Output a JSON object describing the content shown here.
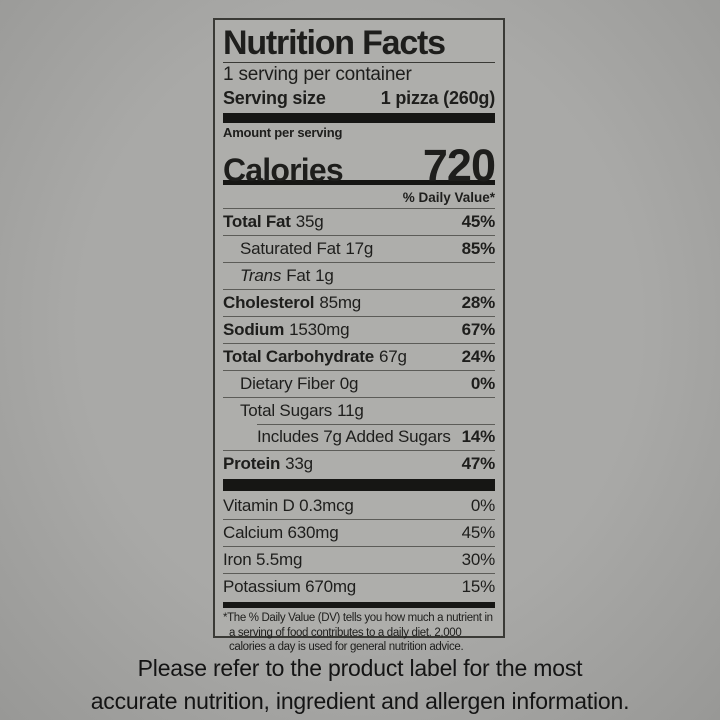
{
  "label": {
    "title": "Nutrition Facts",
    "servings_per_container": "1 serving per container",
    "serving_size_label": "Serving size",
    "serving_size_value": "1 pizza (260g)",
    "amount_per_serving": "Amount per serving",
    "calories_label": "Calories",
    "calories_value": "720",
    "daily_value_header": "% Daily Value*",
    "rows": [
      {
        "name": "Total Fat",
        "amount": "35g",
        "dv": "45%"
      },
      {
        "name": "Saturated Fat",
        "amount": "17g",
        "dv": "85%"
      },
      {
        "name": "Trans",
        "name2": "Fat",
        "amount": "1g",
        "dv": ""
      },
      {
        "name": "Cholesterol",
        "amount": "85mg",
        "dv": "28%"
      },
      {
        "name": "Sodium",
        "amount": "1530mg",
        "dv": "67%"
      },
      {
        "name": "Total Carbohydrate",
        "amount": "67g",
        "dv": "24%"
      },
      {
        "name": "Dietary Fiber",
        "amount": "0g",
        "dv": "0%"
      },
      {
        "name": "Total Sugars",
        "amount": "11g",
        "dv": ""
      },
      {
        "name": "Includes 7g Added Sugars",
        "amount": "",
        "dv": "14%"
      },
      {
        "name": "Protein",
        "amount": "33g",
        "dv": "47%"
      }
    ],
    "vitamins": [
      {
        "name": "Vitamin D 0.3mcg",
        "dv": "0%"
      },
      {
        "name": "Calcium 630mg",
        "dv": "45%"
      },
      {
        "name": "Iron 5.5mg",
        "dv": "30%"
      },
      {
        "name": "Potassium 670mg",
        "dv": "15%"
      }
    ],
    "footnote": "*The % Daily Value (DV) tells you how much a nutrient in a serving of food contributes to a daily diet. 2,000 calories a day is used for general nutrition advice."
  },
  "caption": {
    "line1": "Please refer to the product label for the most",
    "line2": "accurate nutrition, ingredient and allergen information."
  },
  "colors": {
    "background": "#a9a9a7",
    "label_background": "#aeaeab",
    "ink": "#161614"
  }
}
